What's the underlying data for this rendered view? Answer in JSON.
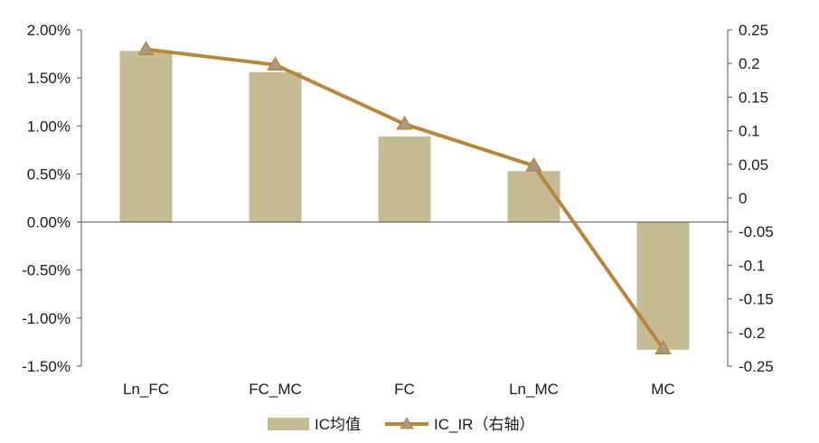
{
  "chart_data": {
    "type": "bar+line",
    "categories": [
      "Ln_FC",
      "FC_MC",
      "FC",
      "Ln_MC",
      "MC"
    ],
    "series": [
      {
        "name": "IC均值",
        "type": "bar",
        "axis": "left",
        "color": "#c6bc94",
        "values": [
          0.0178,
          0.0156,
          0.0089,
          0.0053,
          -0.0133
        ]
      },
      {
        "name": "IC_IR（右轴）",
        "type": "line",
        "axis": "right",
        "color": "#b8863b",
        "marker_color": "#a89a82",
        "values": [
          0.221,
          0.198,
          0.11,
          0.048,
          -0.224
        ]
      }
    ],
    "left_axis": {
      "ylim": [
        -0.015,
        0.02
      ],
      "ticks": [
        0.02,
        0.015,
        0.01,
        0.005,
        0.0,
        -0.005,
        -0.01,
        -0.015
      ],
      "tick_labels": [
        "2.00%",
        "1.50%",
        "1.00%",
        "0.50%",
        "0.00%",
        "-0.50%",
        "-1.00%",
        "-1.50%"
      ]
    },
    "right_axis": {
      "ylim": [
        -0.25,
        0.25
      ],
      "ticks": [
        0.25,
        0.2,
        0.15,
        0.1,
        0.05,
        0,
        -0.05,
        -0.1,
        -0.15,
        -0.2,
        -0.25
      ],
      "tick_labels": [
        "0.25",
        "0.2",
        "0.15",
        "0.1",
        "0.05",
        "0",
        "-0.05",
        "-0.1",
        "-0.15",
        "-0.2",
        "-0.25"
      ]
    },
    "grid": false,
    "legend_position": "bottom-center"
  }
}
